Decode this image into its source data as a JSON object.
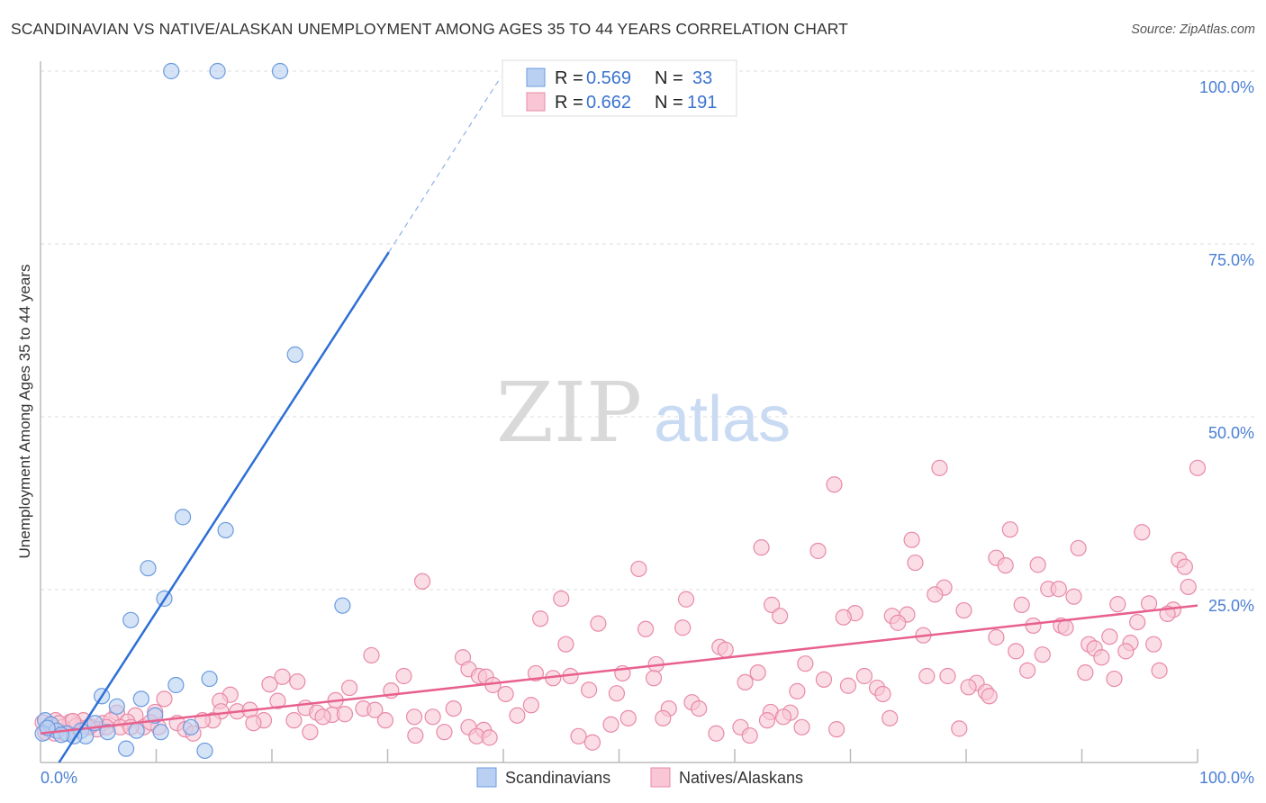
{
  "header": {
    "title": "SCANDINAVIAN VS NATIVE/ALASKAN UNEMPLOYMENT AMONG AGES 35 TO 44 YEARS CORRELATION CHART",
    "source": "Source: ZipAtlas.com"
  },
  "watermark": {
    "zip": "ZIP",
    "atlas": "atlas"
  },
  "legend": {
    "rows": [
      {
        "r_label": "R =",
        "r_value": "0.569",
        "n_label": "N =",
        "n_value": "33"
      },
      {
        "r_label": "R =",
        "r_value": "0.662",
        "n_label": "N =",
        "n_value": "191"
      }
    ],
    "bottom": [
      "Scandinavians",
      "Natives/Alaskans"
    ]
  },
  "chart_data": {
    "type": "scatter",
    "title": "SCANDINAVIAN VS NATIVE/ALASKAN UNEMPLOYMENT AMONG AGES 35 TO 44 YEARS CORRELATION CHART",
    "xlabel": "",
    "ylabel": "Unemployment Among Ages 35 to 44 years",
    "xlim": [
      0,
      100
    ],
    "ylim": [
      0,
      100
    ],
    "x_tick_labels": [
      "0.0%",
      "100.0%"
    ],
    "y_ticks": [
      25,
      50,
      75,
      100
    ],
    "y_tick_labels": [
      "25.0%",
      "50.0%",
      "75.0%",
      "100.0%"
    ],
    "grid": true,
    "legend_placement": "top-center",
    "series": [
      {
        "name": "Scandinavians",
        "color": "#6b9be0",
        "fill": "#b9d0f2",
        "R": 0.569,
        "N": 33,
        "trend": {
          "x0": 1.6,
          "y0": 0,
          "x1": 30.1,
          "y1": 73.8,
          "dash_x1": 39.8,
          "dash_y1": 99.2,
          "color": "#2e6fd6"
        },
        "points": [
          [
            11.3,
            100
          ],
          [
            15.3,
            100
          ],
          [
            20.7,
            100
          ],
          [
            22.0,
            59
          ],
          [
            12.3,
            35.5
          ],
          [
            16.0,
            33.6
          ],
          [
            9.3,
            28.1
          ],
          [
            10.7,
            23.7
          ],
          [
            26.1,
            22.7
          ],
          [
            7.8,
            20.6
          ],
          [
            14.6,
            12.1
          ],
          [
            11.7,
            11.2
          ],
          [
            5.3,
            9.6
          ],
          [
            8.7,
            9.2
          ],
          [
            6.6,
            8.1
          ],
          [
            9.9,
            6.8
          ],
          [
            0.4,
            6.1
          ],
          [
            0.9,
            5.5
          ],
          [
            4.7,
            5.7
          ],
          [
            1.4,
            4.6
          ],
          [
            2.3,
            4.2
          ],
          [
            3.5,
            4.6
          ],
          [
            5.8,
            4.4
          ],
          [
            8.3,
            4.6
          ],
          [
            10.4,
            4.4
          ],
          [
            13.0,
            5.1
          ],
          [
            7.4,
            2.0
          ],
          [
            14.2,
            1.7
          ],
          [
            0.2,
            4.2
          ],
          [
            0.6,
            5.0
          ],
          [
            3.9,
            3.8
          ],
          [
            2.9,
            3.8
          ],
          [
            1.8,
            4.0
          ]
        ]
      },
      {
        "name": "Natives/Alaskans",
        "color": "#e88aa8",
        "fill": "#f8c6d5",
        "R": 0.662,
        "N": 191,
        "trend": {
          "x0": 0,
          "y0": 4.2,
          "x1": 100,
          "y1": 22.7,
          "color": "#e8608d"
        },
        "points": [
          [
            77.7,
            42.6
          ],
          [
            100,
            42.6
          ],
          [
            68.6,
            40.2
          ],
          [
            83.8,
            33.7
          ],
          [
            95.2,
            33.3
          ],
          [
            75.3,
            32.2
          ],
          [
            62.3,
            31.1
          ],
          [
            67.2,
            30.6
          ],
          [
            89.7,
            31.0
          ],
          [
            82.6,
            29.6
          ],
          [
            98.4,
            29.3
          ],
          [
            83.4,
            28.5
          ],
          [
            98.9,
            28.3
          ],
          [
            75.6,
            28.9
          ],
          [
            86.2,
            28.6
          ],
          [
            51.7,
            28.0
          ],
          [
            33.0,
            26.2
          ],
          [
            78.1,
            25.3
          ],
          [
            87.1,
            25.1
          ],
          [
            88.0,
            25.1
          ],
          [
            99.2,
            25.4
          ],
          [
            77.3,
            24.3
          ],
          [
            89.3,
            24.0
          ],
          [
            45.0,
            23.7
          ],
          [
            55.8,
            23.6
          ],
          [
            63.2,
            22.8
          ],
          [
            95.8,
            23.0
          ],
          [
            93.1,
            22.9
          ],
          [
            84.8,
            22.8
          ],
          [
            97.9,
            22.1
          ],
          [
            63.9,
            21.2
          ],
          [
            79.8,
            22.0
          ],
          [
            70.4,
            21.6
          ],
          [
            97.4,
            21.5
          ],
          [
            74.9,
            21.4
          ],
          [
            69.4,
            21.0
          ],
          [
            73.6,
            21.2
          ],
          [
            43.2,
            20.8
          ],
          [
            48.2,
            20.1
          ],
          [
            94.8,
            20.3
          ],
          [
            55.5,
            19.5
          ],
          [
            85.8,
            19.8
          ],
          [
            52.3,
            19.3
          ],
          [
            74.1,
            20.2
          ],
          [
            88.2,
            19.8
          ],
          [
            88.6,
            19.5
          ],
          [
            82.6,
            18.1
          ],
          [
            92.4,
            18.2
          ],
          [
            76.3,
            18.4
          ],
          [
            90.6,
            17.1
          ],
          [
            94.2,
            17.3
          ],
          [
            45.4,
            17.1
          ],
          [
            58.7,
            16.7
          ],
          [
            59.2,
            16.3
          ],
          [
            91.1,
            16.5
          ],
          [
            96.2,
            17.1
          ],
          [
            84.3,
            16.1
          ],
          [
            86.6,
            15.6
          ],
          [
            93.8,
            16.1
          ],
          [
            28.6,
            15.5
          ],
          [
            36.5,
            15.2
          ],
          [
            91.7,
            15.2
          ],
          [
            66.1,
            14.3
          ],
          [
            53.2,
            14.2
          ],
          [
            37.0,
            13.5
          ],
          [
            96.7,
            13.3
          ],
          [
            85.3,
            13.3
          ],
          [
            50.3,
            12.9
          ],
          [
            62.0,
            13.0
          ],
          [
            42.8,
            12.9
          ],
          [
            90.3,
            13.0
          ],
          [
            76.6,
            12.5
          ],
          [
            78.4,
            12.5
          ],
          [
            20.9,
            12.4
          ],
          [
            31.4,
            12.5
          ],
          [
            37.9,
            12.5
          ],
          [
            38.5,
            12.4
          ],
          [
            45.8,
            12.5
          ],
          [
            71.2,
            12.5
          ],
          [
            53.0,
            12.2
          ],
          [
            44.3,
            12.2
          ],
          [
            22.2,
            11.7
          ],
          [
            67.7,
            12.0
          ],
          [
            92.8,
            12.1
          ],
          [
            19.8,
            11.3
          ],
          [
            60.9,
            11.6
          ],
          [
            80.9,
            11.5
          ],
          [
            39.1,
            11.2
          ],
          [
            80.2,
            10.9
          ],
          [
            69.8,
            11.1
          ],
          [
            81.7,
            10.2
          ],
          [
            72.3,
            10.8
          ],
          [
            26.7,
            10.8
          ],
          [
            30.3,
            10.4
          ],
          [
            47.4,
            10.5
          ],
          [
            49.8,
            10.0
          ],
          [
            65.4,
            10.3
          ],
          [
            40.2,
            9.9
          ],
          [
            82.0,
            9.6
          ],
          [
            72.8,
            9.9
          ],
          [
            16.4,
            9.8
          ],
          [
            10.7,
            9.2
          ],
          [
            25.5,
            9.0
          ],
          [
            15.5,
            8.9
          ],
          [
            20.5,
            8.9
          ],
          [
            56.3,
            8.7
          ],
          [
            42.4,
            8.3
          ],
          [
            54.3,
            7.8
          ],
          [
            22.9,
            7.9
          ],
          [
            27.9,
            7.8
          ],
          [
            28.9,
            7.6
          ],
          [
            35.7,
            7.8
          ],
          [
            56.9,
            7.8
          ],
          [
            15.6,
            7.4
          ],
          [
            17.0,
            7.4
          ],
          [
            18.1,
            7.6
          ],
          [
            23.9,
            7.2
          ],
          [
            9.9,
            7.3
          ],
          [
            63.1,
            7.3
          ],
          [
            64.8,
            7.2
          ],
          [
            25.2,
            6.9
          ],
          [
            24.4,
            6.6
          ],
          [
            6.6,
            7.2
          ],
          [
            26.3,
            7.0
          ],
          [
            32.3,
            6.6
          ],
          [
            33.9,
            6.6
          ],
          [
            41.2,
            6.8
          ],
          [
            8.2,
            6.8
          ],
          [
            64.2,
            6.6
          ],
          [
            50.8,
            6.4
          ],
          [
            53.8,
            6.4
          ],
          [
            73.4,
            6.4
          ],
          [
            29.8,
            6.1
          ],
          [
            19.3,
            6.1
          ],
          [
            14.9,
            6.1
          ],
          [
            21.9,
            6.1
          ],
          [
            18.4,
            5.7
          ],
          [
            14.0,
            6.1
          ],
          [
            11.8,
            5.7
          ],
          [
            3.7,
            6.1
          ],
          [
            1.3,
            6.1
          ],
          [
            2.6,
            5.9
          ],
          [
            5.4,
            5.7
          ],
          [
            6.1,
            6.1
          ],
          [
            7.5,
            5.9
          ],
          [
            8.9,
            5.1
          ],
          [
            10.2,
            5.1
          ],
          [
            12.5,
            4.8
          ],
          [
            49.3,
            5.5
          ],
          [
            62.8,
            6.1
          ],
          [
            60.5,
            5.1
          ],
          [
            37.0,
            5.1
          ],
          [
            38.3,
            4.7
          ],
          [
            68.8,
            4.8
          ],
          [
            79.4,
            4.9
          ],
          [
            65.8,
            5.1
          ],
          [
            23.3,
            4.4
          ],
          [
            34.9,
            4.4
          ],
          [
            13.2,
            4.2
          ],
          [
            58.4,
            4.2
          ],
          [
            61.3,
            3.9
          ],
          [
            32.4,
            3.9
          ],
          [
            37.7,
            3.8
          ],
          [
            38.8,
            3.6
          ],
          [
            46.5,
            3.8
          ],
          [
            47.7,
            2.9
          ],
          [
            4.3,
            5.2
          ],
          [
            1.9,
            5.1
          ],
          [
            0.8,
            5.3
          ],
          [
            0.4,
            4.4
          ],
          [
            4.9,
            4.8
          ],
          [
            3.1,
            5.3
          ],
          [
            1.6,
            5.7
          ],
          [
            4.1,
            5.1
          ],
          [
            5.7,
            5.1
          ],
          [
            6.9,
            5.1
          ],
          [
            7.8,
            5.1
          ],
          [
            1.2,
            4.2
          ],
          [
            2.1,
            4.2
          ],
          [
            0.2,
            5.8
          ],
          [
            2.8,
            6.0
          ],
          [
            9.5,
            5.8
          ]
        ]
      }
    ]
  }
}
